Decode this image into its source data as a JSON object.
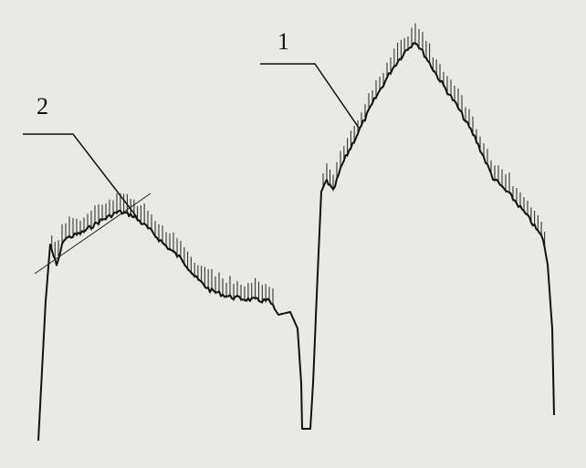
{
  "labels": [
    "1",
    "2"
  ]
}
